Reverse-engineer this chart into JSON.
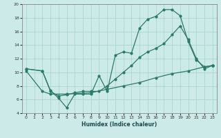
{
  "xlabel": "Humidex (Indice chaleur)",
  "bg_color": "#cceae8",
  "grid_color": "#aad4d0",
  "line_color": "#2a7a6a",
  "xlim": [
    -0.5,
    23.5
  ],
  "ylim": [
    4,
    20
  ],
  "xticks": [
    0,
    1,
    2,
    3,
    4,
    5,
    6,
    7,
    8,
    9,
    10,
    11,
    12,
    13,
    14,
    15,
    16,
    17,
    18,
    19,
    20,
    21,
    22,
    23
  ],
  "yticks": [
    4,
    6,
    8,
    10,
    12,
    14,
    16,
    18,
    20
  ],
  "line1_x": [
    0,
    2,
    3,
    4,
    5,
    6,
    7,
    8,
    9,
    10,
    11,
    12,
    13,
    14,
    15,
    16,
    17,
    18,
    19,
    20,
    21,
    22,
    23
  ],
  "line1_y": [
    10.5,
    10.2,
    7.3,
    6.2,
    4.8,
    6.8,
    6.8,
    6.8,
    9.5,
    7.2,
    12.5,
    13.0,
    12.8,
    16.5,
    17.8,
    18.2,
    19.2,
    19.2,
    18.3,
    14.5,
    11.8,
    10.8,
    11.0
  ],
  "line2_x": [
    0,
    2,
    3,
    4,
    5,
    6,
    7,
    8,
    9,
    10,
    11,
    12,
    13,
    14,
    15,
    16,
    17,
    18,
    19,
    20,
    21,
    22,
    23
  ],
  "line2_y": [
    10.5,
    10.2,
    7.2,
    6.5,
    6.7,
    7.0,
    7.2,
    7.2,
    7.2,
    8.0,
    9.0,
    10.0,
    11.0,
    12.2,
    13.0,
    13.5,
    14.2,
    15.5,
    16.8,
    14.8,
    12.0,
    10.5,
    11.0
  ],
  "line3_x": [
    0,
    2,
    3,
    5,
    8,
    10,
    12,
    14,
    16,
    18,
    20,
    22,
    23
  ],
  "line3_y": [
    10.2,
    7.2,
    6.8,
    6.8,
    7.0,
    7.5,
    8.0,
    8.5,
    9.2,
    9.8,
    10.2,
    10.8,
    11.0
  ]
}
